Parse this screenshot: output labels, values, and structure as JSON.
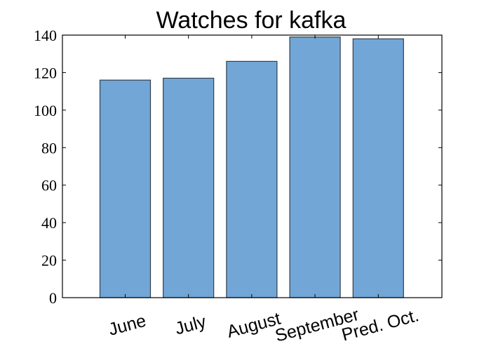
{
  "chart_data": {
    "type": "bar",
    "title": "Watches for kafka",
    "categories": [
      "June",
      "July",
      "August",
      "September",
      "Pred. Oct."
    ],
    "values": [
      116,
      117,
      126,
      139,
      138
    ],
    "xlabel": "",
    "ylabel": "",
    "ylim": [
      0,
      140
    ],
    "yticks": [
      0,
      20,
      40,
      60,
      80,
      100,
      120,
      140
    ],
    "bar_color": "#72a6d6",
    "bar_edge_color": "#2f3f4f",
    "grid": false,
    "legend": "none"
  }
}
